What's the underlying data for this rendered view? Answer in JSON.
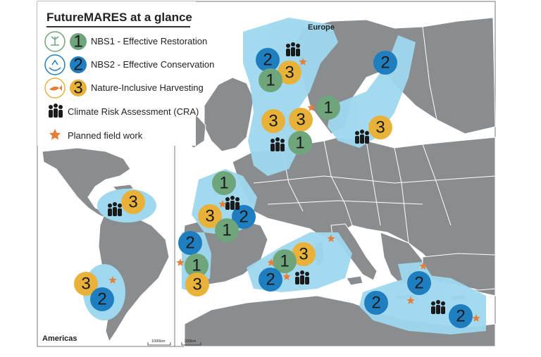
{
  "title": "FutureMARES at a glance",
  "legend": [
    {
      "badge": "1",
      "label": "NBS1 - Effective Restoration",
      "color": "#6fa57a",
      "icon": "seedling-hand-icon"
    },
    {
      "badge": "2",
      "label": "NBS2 - Effective Conservation",
      "color": "#1f7ec0",
      "icon": "hands-protect-icon"
    },
    {
      "badge": "3",
      "label": "Nature-Inclusive Harvesting",
      "color": "#e8b23a",
      "icon": "fish-hand-icon"
    },
    {
      "badge": "",
      "label": "Climate Risk Assessment (CRA)",
      "icon": "people-group-icon"
    },
    {
      "badge": "",
      "label": "Planned field work",
      "icon": "star-icon",
      "color": "#e67e3a"
    }
  ],
  "regions": {
    "europe": "Europe",
    "americas": "Americas"
  },
  "scalebars": {
    "americas": "1000km",
    "europe": "200km"
  },
  "colors": {
    "land": "#8a8d90",
    "sea_highlight": "#9fd8ef",
    "border": "#ffffff",
    "frame": "#888888"
  }
}
